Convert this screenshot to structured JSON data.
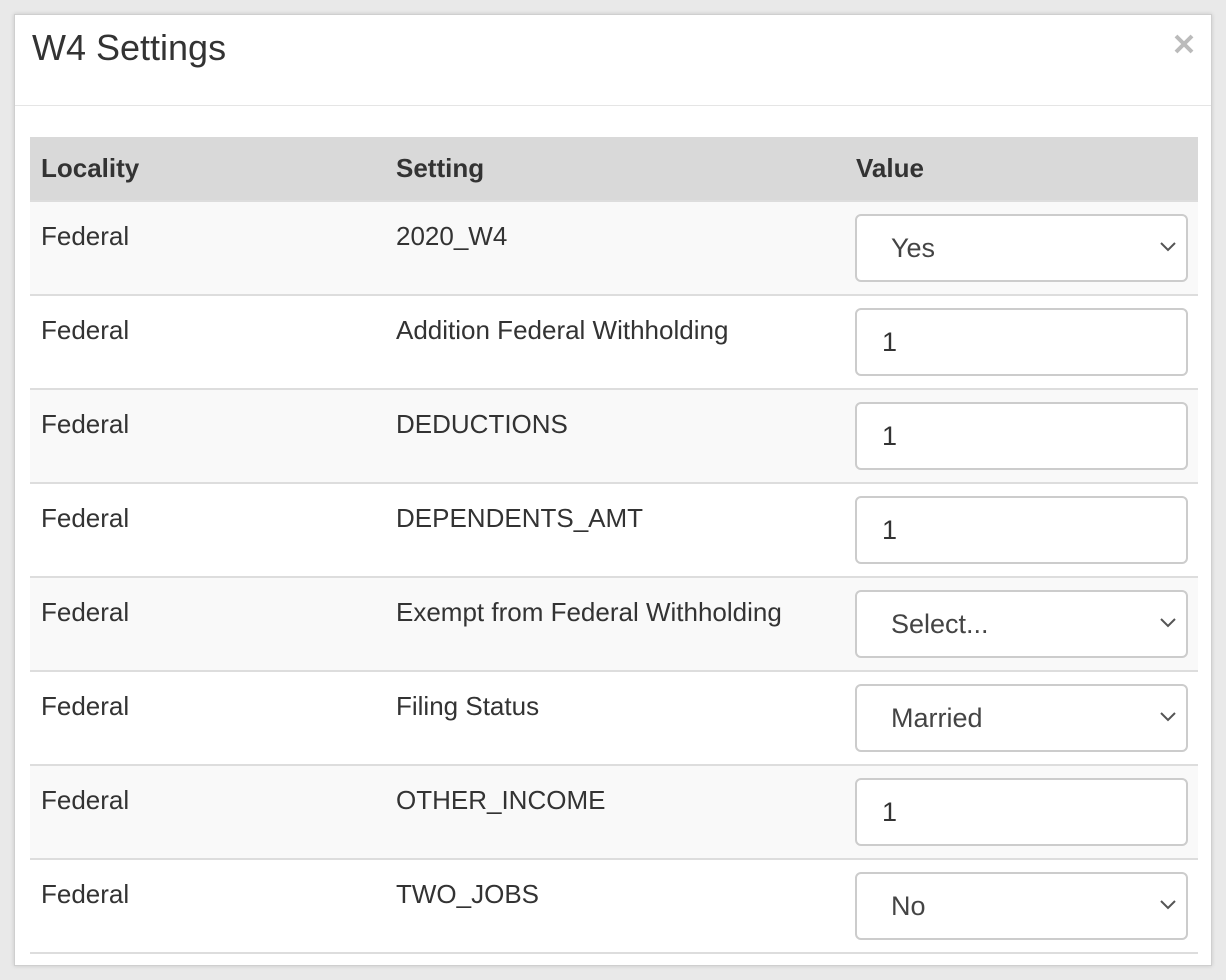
{
  "header": {
    "title": "W4 Settings"
  },
  "table": {
    "columns": [
      "Locality",
      "Setting",
      "Value"
    ],
    "rows": [
      {
        "locality": "Federal",
        "setting": "2020_W4",
        "value": "Yes",
        "control": "select"
      },
      {
        "locality": "Federal",
        "setting": "Addition Federal Withholding",
        "value": "1",
        "control": "input"
      },
      {
        "locality": "Federal",
        "setting": "DEDUCTIONS",
        "value": "1",
        "control": "input"
      },
      {
        "locality": "Federal",
        "setting": "DEPENDENTS_AMT",
        "value": "1",
        "control": "input"
      },
      {
        "locality": "Federal",
        "setting": "Exempt from Federal Withholding",
        "value": "Select...",
        "control": "select"
      },
      {
        "locality": "Federal",
        "setting": "Filing Status",
        "value": "Married",
        "control": "select"
      },
      {
        "locality": "Federal",
        "setting": "OTHER_INCOME",
        "value": "1",
        "control": "input"
      },
      {
        "locality": "Federal",
        "setting": "TWO_JOBS",
        "value": "No",
        "control": "select"
      }
    ]
  }
}
